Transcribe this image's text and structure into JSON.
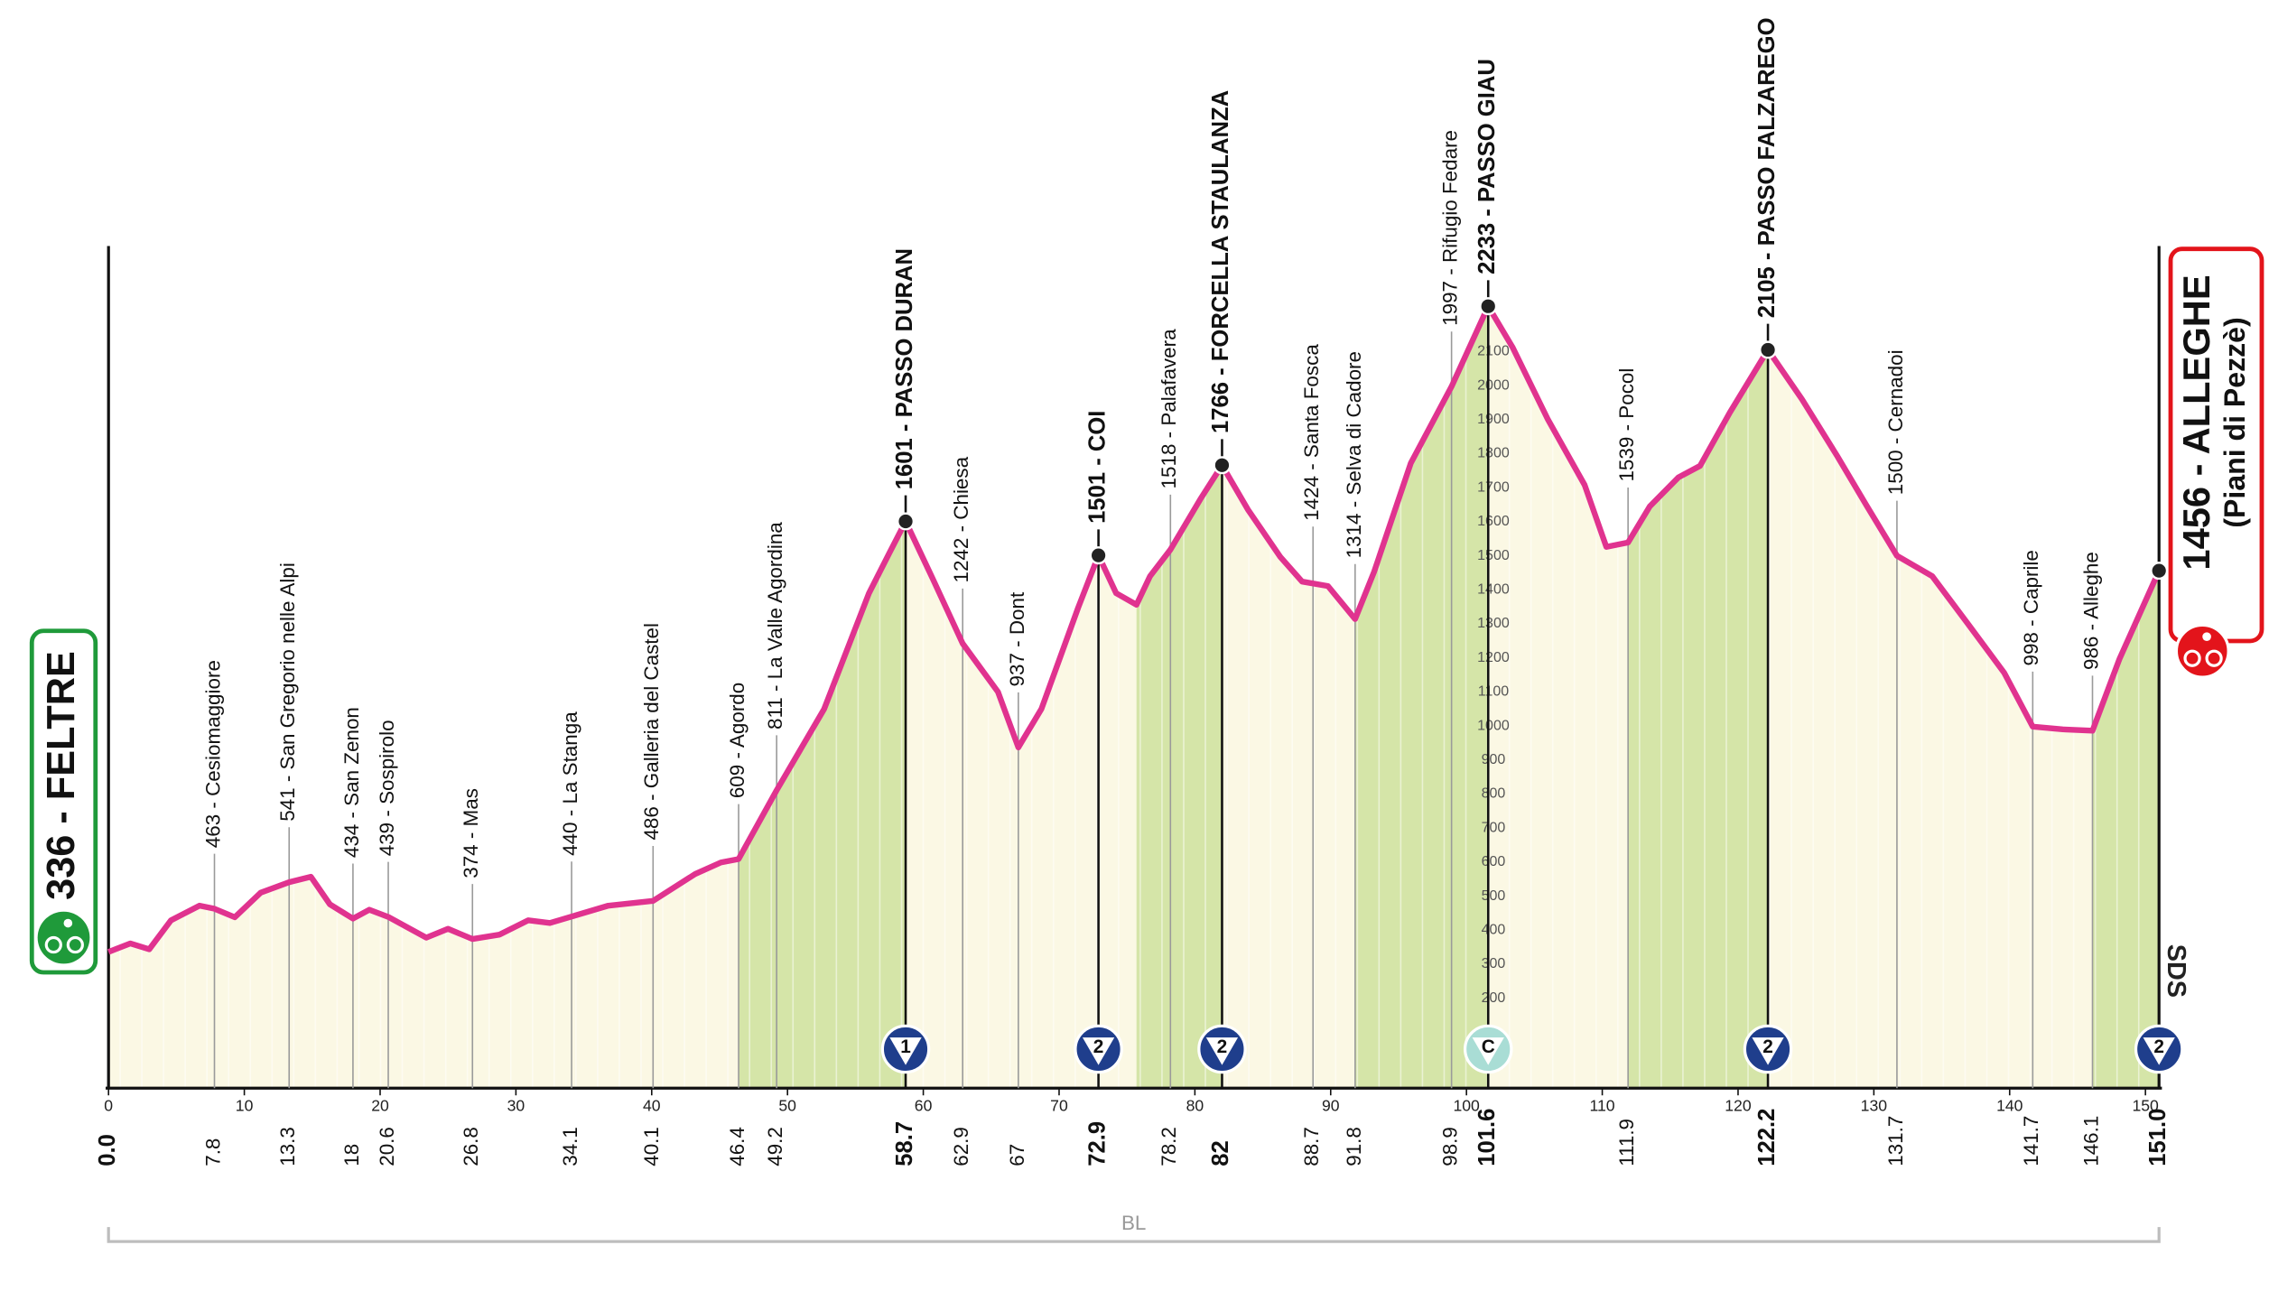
{
  "chart_data": {
    "type": "stage-profile",
    "xlim": [
      0,
      151
    ],
    "ylim": [
      -64,
      2410
    ],
    "xticks": [
      0,
      10,
      20,
      30,
      40,
      50,
      60,
      70,
      80,
      90,
      100,
      110,
      120,
      130,
      140,
      150
    ],
    "yticks": [
      200,
      300,
      400,
      500,
      600,
      700,
      800,
      900,
      1000,
      1100,
      1200,
      1300,
      1400,
      1500,
      1600,
      1700,
      1800,
      1900,
      2000,
      2100
    ],
    "line_color": "#e0338f",
    "fill_color": "#fbf8e4",
    "climb_color": "#d5e5a8",
    "profile": {
      "km": [
        0,
        1.6,
        3.0,
        4.6,
        6.7,
        7.8,
        9.3,
        11.2,
        13.3,
        14.9,
        16.3,
        18.0,
        19.2,
        20.6,
        23.4,
        25.0,
        26.8,
        28.8,
        30.9,
        32.5,
        34.1,
        36.8,
        40.1,
        43.2,
        45.1,
        46.4,
        49.2,
        52.7,
        56.0,
        57.5,
        58.7,
        60.7,
        62.9,
        65.5,
        67.0,
        68.7,
        71.4,
        72.9,
        74.2,
        75.7,
        76.7,
        78.2,
        80.4,
        82.0,
        83.9,
        86.3,
        87.9,
        89.8,
        91.8,
        93.2,
        95.9,
        98.9,
        101.6,
        103.4,
        106.0,
        108.7,
        110.3,
        111.9,
        113.5,
        115.6,
        117.2,
        119.4,
        122.2,
        124.7,
        127.3,
        129.5,
        131.7,
        134.3,
        137.0,
        139.6,
        141.7,
        143.9,
        146.1,
        148.1,
        151.0
      ],
      "altitude": [
        336,
        361,
        344,
        429,
        472,
        463,
        438,
        510,
        541,
        557,
        476,
        434,
        460,
        439,
        378,
        404,
        374,
        387,
        429,
        421,
        440,
        472,
        486,
        565,
        599,
        609,
        811,
        1050,
        1390,
        1508,
        1601,
        1432,
        1242,
        1100,
        937,
        1050,
        1347,
        1501,
        1390,
        1356,
        1440,
        1518,
        1666,
        1766,
        1636,
        1496,
        1424,
        1411,
        1314,
        1453,
        1772,
        1997,
        2233,
        2112,
        1900,
        1708,
        1526,
        1539,
        1645,
        1730,
        1764,
        1921,
        2105,
        1960,
        1793,
        1645,
        1500,
        1440,
        1296,
        1156,
        998,
        990,
        986,
        1198,
        1456
      ]
    },
    "climbs": [
      {
        "from": 46.4,
        "to": 58.7
      },
      {
        "from": 75.7,
        "to": 82.0
      },
      {
        "from": 91.8,
        "to": 101.6
      },
      {
        "from": 111.9,
        "to": 122.2
      },
      {
        "from": 146.1,
        "to": 151.0
      }
    ],
    "waypoints": [
      {
        "km": {
          "value": 0,
          "label": "0.0"
        },
        "altitude": 336,
        "bold": true
      },
      {
        "km": 7.8,
        "altitude": 463,
        "label": "463 - Cesiomaggiore"
      },
      {
        "km": 13.3,
        "altitude": 541,
        "label": "541 - San Gregorio nelle Alpi"
      },
      {
        "km": 18.0,
        "altitude": 434,
        "label": "434 - San Zenon"
      },
      {
        "km": 20.6,
        "altitude": 439,
        "label": "439 - Sospirolo"
      },
      {
        "km": 26.8,
        "altitude": 374,
        "label": "374 - Mas"
      },
      {
        "km": 34.1,
        "altitude": 440,
        "label": "440 - La Stanga"
      },
      {
        "km": 40.1,
        "altitude": 486,
        "label": "486 - Galleria del Castel"
      },
      {
        "km": 46.4,
        "altitude": 609,
        "label": "609 - Agordo"
      },
      {
        "km": 49.2,
        "altitude": 811,
        "label": "811 - La Valle Agordina"
      },
      {
        "km": 58.7,
        "altitude": 1601,
        "label": "1601 - PASSO DURAN",
        "bold": true,
        "dot": true,
        "climb": {
          "category": "1",
          "color": "#1f3e8c"
        }
      },
      {
        "km": 62.9,
        "altitude": 1242,
        "label": "1242 - Chiesa"
      },
      {
        "km": 67.0,
        "altitude": 937,
        "label": "937 - Dont"
      },
      {
        "km": 72.9,
        "altitude": 1501,
        "label": "1501 - COI",
        "bold": true,
        "dot": true,
        "climb": {
          "category": "2",
          "color": "#1f3e8c"
        }
      },
      {
        "km": 78.2,
        "altitude": 1518,
        "label": "1518 - Palafavera"
      },
      {
        "km": 82.0,
        "altitude": 1766,
        "label": "1766 - FORCELLA STAULANZA",
        "bold": true,
        "dot": true,
        "climb": {
          "category": "2",
          "color": "#1f3e8c"
        }
      },
      {
        "km": 88.7,
        "altitude": 1424,
        "label": "1424 - Santa Fosca"
      },
      {
        "km": 91.8,
        "altitude": 1314,
        "label": "1314 - Selva di Cadore"
      },
      {
        "km": 98.9,
        "altitude": 1997,
        "label": "1997 - Rifugio Fedare"
      },
      {
        "km": 101.6,
        "altitude": 2233,
        "label": "2233 - PASSO GIAU",
        "bold": true,
        "dot": true,
        "climb": {
          "category": "C",
          "color": "#a9ddd5"
        }
      },
      {
        "km": 111.9,
        "altitude": 1539,
        "label": "1539 - Pocol"
      },
      {
        "km": 122.2,
        "altitude": 2105,
        "label": "2105 - PASSO FALZAREGO",
        "bold": true,
        "dot": true,
        "climb": {
          "category": "2",
          "color": "#1f3e8c"
        }
      },
      {
        "km": 131.7,
        "altitude": 1500,
        "label": "1500 - Cernadoi"
      },
      {
        "km": 141.7,
        "altitude": 998,
        "label": "998 - Caprile"
      },
      {
        "km": 146.1,
        "altitude": 986,
        "label": "986 - Alleghe"
      },
      {
        "km": {
          "value": 151,
          "label": "151.0"
        },
        "altitude": 1456,
        "bold": true,
        "dot": true,
        "climb": {
          "category": "2",
          "color": "#1f3e8c"
        }
      }
    ],
    "start": {
      "label": "336 - FELTRE",
      "color": "#1f9a3a"
    },
    "finish": {
      "label": "1456 - ALLEGHE",
      "sublabel": "(Piani di Pezzè)",
      "color": "#e3141b"
    },
    "region": "BL",
    "logo": "SDS"
  }
}
